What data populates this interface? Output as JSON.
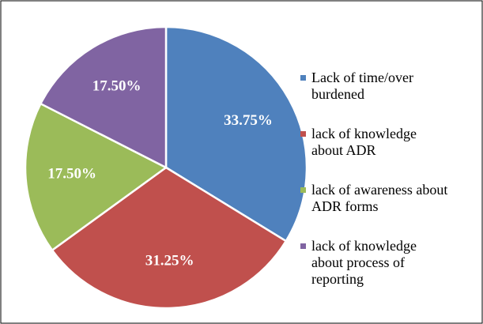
{
  "chart_data": {
    "type": "pie",
    "categories": [
      "Lack of time/over burdened",
      "lack of knowledge about ADR",
      "lack of awareness about ADR forms",
      "lack of knowledge about process of reporting"
    ],
    "values": [
      33.75,
      31.25,
      17.5,
      17.5
    ],
    "value_labels": [
      "33.75%",
      "31.25%",
      "17.50%",
      "17.50%"
    ],
    "colors": [
      "#4f81bd",
      "#c0504d",
      "#9bbb59",
      "#8064a2"
    ],
    "legend": "right"
  }
}
